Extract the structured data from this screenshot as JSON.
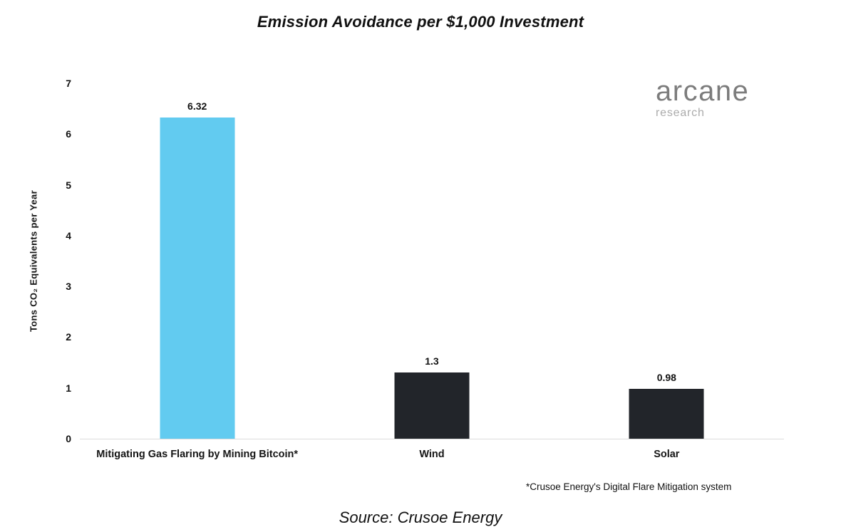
{
  "title": "Emission Avoidance per $1,000 Investment",
  "logo": {
    "name": "arcane",
    "sub": "research"
  },
  "footnote": "*Crusoe Energy's Digital Flare Mitigation system",
  "source": "Source: Crusoe Energy",
  "chart_data": {
    "type": "bar",
    "title": "Emission Avoidance per $1,000 Investment",
    "categories": [
      "Mitigating Gas Flaring by Mining Bitcoin*",
      "Wind",
      "Solar"
    ],
    "values": [
      6.32,
      1.3,
      0.98
    ],
    "value_labels": [
      "6.32",
      "1.3",
      "0.98"
    ],
    "bar_colors": [
      "#62CBF0",
      "#22252A",
      "#22252A"
    ],
    "xlabel": "",
    "ylabel": "Tons CO₂ Equivalents per Year",
    "ylim": [
      0,
      7
    ],
    "yticks": [
      0,
      1,
      2,
      3,
      4,
      5,
      6,
      7
    ],
    "grid": false,
    "legend": "none",
    "baseline_color": "#dcdcdc"
  }
}
